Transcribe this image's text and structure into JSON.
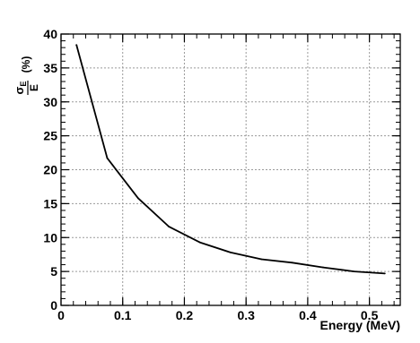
{
  "chart_data": {
    "type": "line",
    "xlabel": "Energy (MeV)",
    "ylabel": {
      "sigma": "σ",
      "sub": "E",
      "den": "E",
      "unit": "(%)"
    },
    "xlim": [
      0,
      0.55
    ],
    "ylim": [
      0,
      40
    ],
    "x_ticks": [
      0,
      0.1,
      0.2,
      0.3,
      0.4,
      0.5
    ],
    "x_tick_labels": [
      "0",
      "0.1",
      "0.2",
      "0.3",
      "0.4",
      "0.5"
    ],
    "y_ticks": [
      0,
      5,
      10,
      15,
      20,
      25,
      30,
      35,
      40
    ],
    "y_tick_labels": [
      "0",
      "5",
      "10",
      "15",
      "20",
      "25",
      "30",
      "35",
      "40"
    ],
    "grid": true,
    "series": [
      {
        "color": "#000000",
        "x": [
          0.025,
          0.075,
          0.125,
          0.175,
          0.225,
          0.275,
          0.325,
          0.375,
          0.425,
          0.475,
          0.525
        ],
        "y": [
          38.4,
          21.7,
          15.8,
          11.6,
          9.3,
          7.8,
          6.8,
          6.3,
          5.6,
          5.0,
          4.7
        ]
      }
    ]
  }
}
